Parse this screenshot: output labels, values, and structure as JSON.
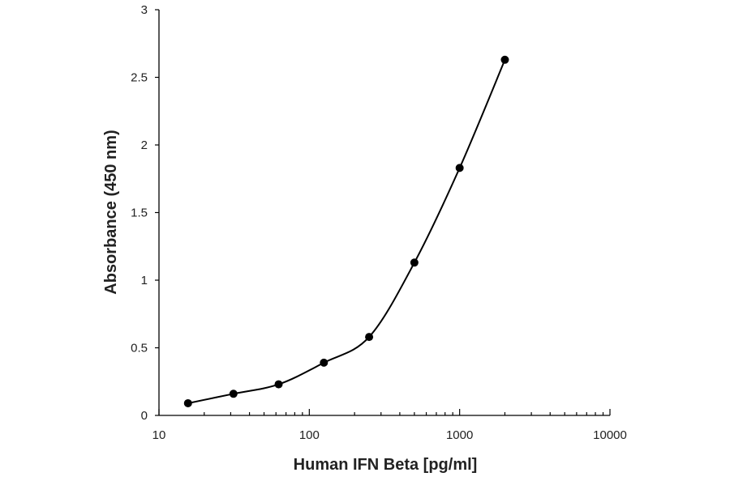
{
  "chart_data": {
    "type": "scatter",
    "xlabel": "Human IFN Beta [pg/ml]",
    "ylabel": "Absorbance (450 nm)",
    "x_scale": "log",
    "xlim": [
      10,
      10000
    ],
    "ylim": [
      0,
      3
    ],
    "x_ticks": [
      "10",
      "100",
      "1000",
      "10000"
    ],
    "y_ticks": [
      "0",
      "0.5",
      "1",
      "1.5",
      "2",
      "2.5",
      "3"
    ],
    "grid": false,
    "series": [
      {
        "x": [
          15.6,
          31.3,
          62.5,
          125,
          250,
          500,
          1000,
          2000
        ],
        "y": [
          0.09,
          0.16,
          0.23,
          0.39,
          0.58,
          1.13,
          1.83,
          2.63
        ]
      }
    ],
    "colors": {
      "line": "#000000",
      "marker": "#000000"
    }
  }
}
